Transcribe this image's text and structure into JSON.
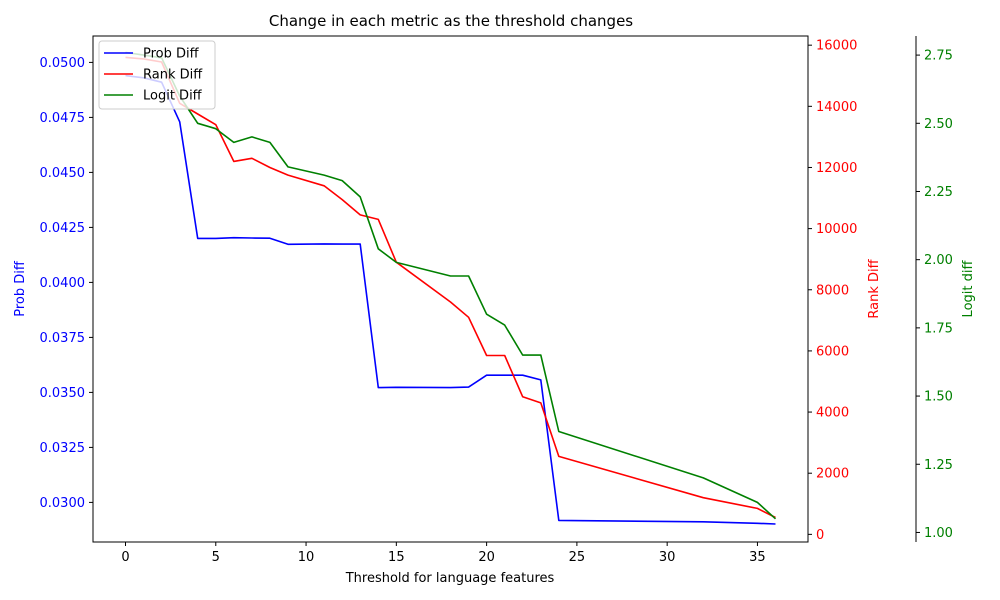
{
  "chart_data": {
    "type": "line",
    "title": "Change in each metric as the threshold changes",
    "xlabel": "Threshold for language features",
    "xlim": [
      -1.8,
      37.8
    ],
    "xticks": [
      0,
      5,
      10,
      15,
      20,
      25,
      30,
      35
    ],
    "x": [
      0,
      1,
      2,
      3,
      4,
      5,
      6,
      7,
      8,
      9,
      11,
      12,
      13,
      14,
      15,
      18,
      19,
      20,
      21,
      22,
      23,
      24,
      32,
      35,
      36
    ],
    "axes": [
      {
        "id": "prob",
        "label": "Prob Diff",
        "side": "left",
        "color": "#0000ff",
        "ylim": [
          0.0282,
          0.0512
        ],
        "ticks": [
          0.03,
          0.0325,
          0.035,
          0.0375,
          0.04,
          0.0425,
          0.045,
          0.0475,
          0.05
        ],
        "tick_labels": [
          "0.0300",
          "0.0325",
          "0.0350",
          "0.0375",
          "0.0400",
          "0.0425",
          "0.0450",
          "0.0475",
          "0.0500"
        ]
      },
      {
        "id": "rank",
        "label": "Rank Diff",
        "side": "right",
        "color": "#ff0000",
        "ylim": [
          -250,
          16300
        ],
        "ticks": [
          0,
          2000,
          4000,
          6000,
          8000,
          10000,
          12000,
          14000,
          16000
        ],
        "tick_labels": [
          "0",
          "2000",
          "4000",
          "6000",
          "8000",
          "10000",
          "12000",
          "14000",
          "16000"
        ]
      },
      {
        "id": "logit",
        "label": "Logit diff",
        "side": "right-outer",
        "color": "#008000",
        "ylim": [
          0.965,
          2.82
        ],
        "ticks": [
          1.0,
          1.25,
          1.5,
          1.75,
          2.0,
          2.25,
          2.5,
          2.75
        ],
        "tick_labels": [
          "1.00",
          "1.25",
          "1.50",
          "1.75",
          "2.00",
          "2.25",
          "2.50",
          "2.75"
        ]
      }
    ],
    "series": [
      {
        "name": "Prob Diff",
        "axis": "prob",
        "color": "#0000ff",
        "values": [
          0.0494,
          0.0493,
          0.0491,
          0.0473,
          0.042,
          0.042,
          0.04203,
          0.04202,
          0.04201,
          0.04173,
          0.04175,
          0.04174,
          0.04174,
          0.03522,
          0.03523,
          0.03522,
          0.03524,
          0.03578,
          0.03578,
          0.03578,
          0.03557,
          0.02918,
          0.02912,
          0.02905,
          0.02902
        ]
      },
      {
        "name": "Rank Diff",
        "axis": "rank",
        "color": "#ff0000",
        "values": [
          15600,
          15550,
          15450,
          14100,
          13750,
          13400,
          12200,
          12300,
          12000,
          11750,
          11400,
          10950,
          10450,
          10300,
          8900,
          7600,
          7100,
          5850,
          5850,
          4500,
          4300,
          2550,
          1200,
          850,
          550
        ]
      },
      {
        "name": "Logit Diff",
        "axis": "logit",
        "color": "#008000",
        "values": [
          2.76,
          2.75,
          2.74,
          2.6,
          2.5,
          2.48,
          2.43,
          2.45,
          2.43,
          2.34,
          2.31,
          2.29,
          2.23,
          2.04,
          1.99,
          1.94,
          1.94,
          1.8,
          1.76,
          1.65,
          1.65,
          1.37,
          1.2,
          1.11,
          1.05
        ]
      }
    ],
    "legend": {
      "position": "upper-left",
      "entries": [
        "Prob Diff",
        "Rank Diff",
        "Logit Diff"
      ]
    },
    "grid": false
  }
}
